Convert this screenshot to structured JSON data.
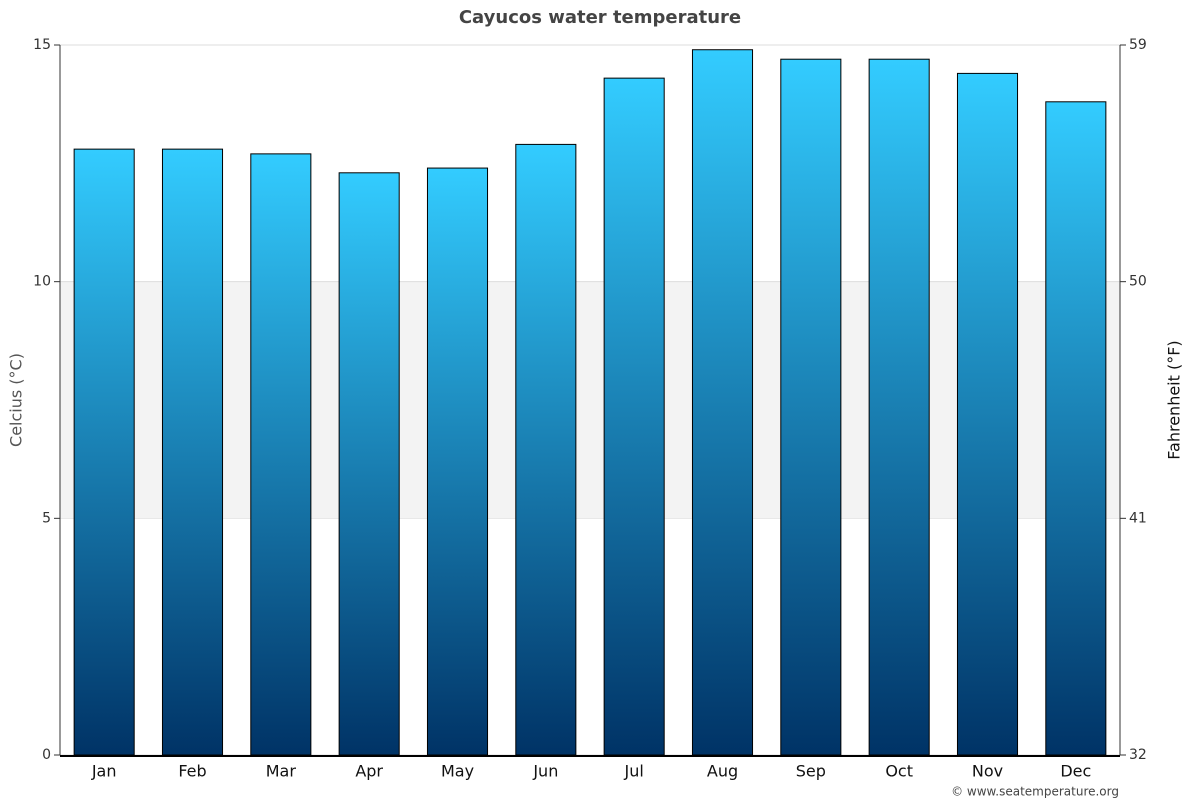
{
  "chart_data": {
    "type": "bar",
    "title": "Cayucos water temperature",
    "categories": [
      "Jan",
      "Feb",
      "Mar",
      "Apr",
      "May",
      "Jun",
      "Jul",
      "Aug",
      "Sep",
      "Oct",
      "Nov",
      "Dec"
    ],
    "values": [
      12.8,
      12.8,
      12.7,
      12.3,
      12.4,
      12.9,
      14.3,
      14.9,
      14.7,
      14.7,
      14.4,
      13.8
    ],
    "ylabel": "Celcius (°C)",
    "y2label": "Fahrenheit (°F)",
    "ylim": [
      0,
      15
    ],
    "yticks": [
      0,
      5,
      10,
      15
    ],
    "y2lim": [
      32,
      59
    ],
    "y2ticks": [
      32,
      41,
      50,
      59
    ],
    "colors": [
      "#33ccff",
      "#003366"
    ],
    "grid": true,
    "credit": "© www.seatemperature.org"
  }
}
